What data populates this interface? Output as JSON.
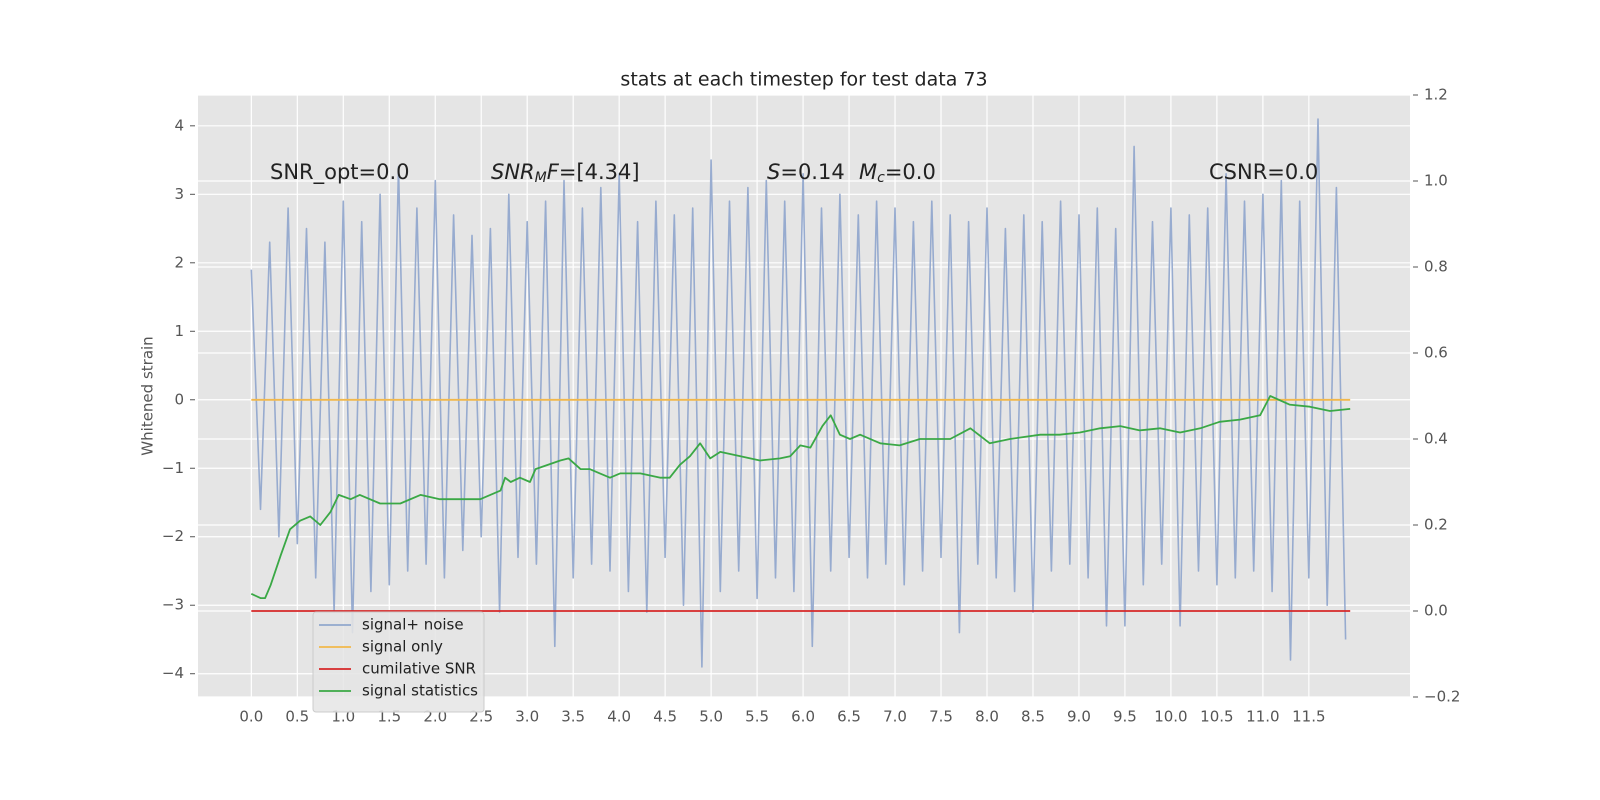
{
  "chart_data": {
    "type": "line",
    "title": "stats at each timestep for test data 73",
    "ylabel": "Whitened strain",
    "xlim": [
      -0.58,
      12.6
    ],
    "ylim": [
      -4.34,
      4.45
    ],
    "y2lim": [
      -0.2,
      1.2
    ],
    "xticks": [
      {
        "value": 0,
        "label": "0.0"
      },
      0.5,
      {
        "value": 1,
        "label": "1.0"
      },
      1.5,
      {
        "value": 2,
        "label": "2.0"
      },
      2.5,
      {
        "value": 3,
        "label": "3.0"
      },
      3.5,
      {
        "value": 4,
        "label": "4.0"
      },
      4.5,
      {
        "value": 5,
        "label": "5.0"
      },
      5.5,
      {
        "value": 6,
        "label": "6.0"
      },
      6.5,
      {
        "value": 7,
        "label": "7.0"
      },
      7.5,
      {
        "value": 8,
        "label": "8.0"
      },
      8.5,
      {
        "value": 9,
        "label": "9.0"
      },
      9.5,
      {
        "value": 10,
        "label": "10.0"
      },
      10.5,
      {
        "value": 11,
        "label": "11.0"
      },
      11.5
    ],
    "yticks": [
      {
        "value": -4,
        "label": "−4"
      },
      {
        "value": -3,
        "label": "−3"
      },
      {
        "value": -2,
        "label": "−2"
      },
      {
        "value": -1,
        "label": "−1"
      },
      0,
      1,
      2,
      3,
      4
    ],
    "y2ticks": [
      {
        "value": -0.2,
        "label": "−0.2"
      },
      {
        "value": 0,
        "label": "0.0"
      },
      0.2,
      0.4,
      0.6,
      0.8,
      {
        "value": 1,
        "label": "1.0"
      },
      1.2
    ],
    "grid": true,
    "legend": "lower left",
    "annotations": [
      {
        "parts": [
          {
            "text": "SNR_opt=0.0"
          }
        ]
      },
      {
        "parts": [
          {
            "text": "SNR",
            "italic": true
          },
          {
            "text": "M",
            "italic": true,
            "sub": true
          },
          {
            "text": "F",
            "italic": true
          },
          {
            "text": "=[4.34]"
          }
        ]
      },
      {
        "parts": [
          {
            "text": "S",
            "italic": true
          },
          {
            "text": "=0.14"
          }
        ]
      },
      {
        "parts": [
          {
            "text": "M",
            "italic": true
          },
          {
            "text": "c",
            "italic": true,
            "sub": true
          },
          {
            "text": "=0.0"
          }
        ]
      },
      {
        "parts": [
          {
            "text": "CSNR=0.0"
          }
        ]
      }
    ],
    "series": [
      {
        "name": "signal+ noise",
        "color": "#92a8cd",
        "axis": "y",
        "x": [
          0,
          0.1,
          0.2,
          0.3,
          0.4,
          0.5,
          0.6,
          0.7,
          0.8,
          0.9,
          1,
          1.1,
          1.2,
          1.3,
          1.4,
          1.5,
          1.6,
          1.7,
          1.8,
          1.9,
          2,
          2.1,
          2.2,
          2.3,
          2.4,
          2.5,
          2.6,
          2.7,
          2.8,
          2.9,
          3,
          3.1,
          3.2,
          3.3,
          3.4,
          3.5,
          3.6,
          3.7,
          3.8,
          3.9,
          4,
          4.1,
          4.2,
          4.3,
          4.4,
          4.5,
          4.6,
          4.7,
          4.8,
          4.9,
          5,
          5.1,
          5.2,
          5.3,
          5.4,
          5.5,
          5.6,
          5.7,
          5.8,
          5.9,
          6,
          6.1,
          6.2,
          6.3,
          6.4,
          6.5,
          6.6,
          6.7,
          6.8,
          6.9,
          7,
          7.1,
          7.2,
          7.3,
          7.4,
          7.5,
          7.6,
          7.7,
          7.8,
          7.9,
          8,
          8.1,
          8.2,
          8.3,
          8.4,
          8.5,
          8.6,
          8.7,
          8.8,
          8.9,
          9,
          9.1,
          9.2,
          9.3,
          9.4,
          9.5,
          9.6,
          9.7,
          9.8,
          9.9,
          10,
          10.1,
          10.2,
          10.3,
          10.4,
          10.5,
          10.6,
          10.7,
          10.8,
          10.9,
          11,
          11.1,
          11.2,
          11.3,
          11.4,
          11.5,
          11.6,
          11.7,
          11.8,
          11.9
        ],
        "values": [
          1.9,
          -1.6,
          2.3,
          -2.0,
          2.8,
          -2.1,
          2.5,
          -2.6,
          2.3,
          -3.1,
          2.9,
          -3.4,
          2.6,
          -2.8,
          3.0,
          -2.7,
          3.4,
          -2.5,
          2.8,
          -2.4,
          3.2,
          -2.6,
          2.7,
          -2.2,
          2.4,
          -2.0,
          2.5,
          -3.1,
          3.0,
          -2.3,
          2.6,
          -2.4,
          2.9,
          -3.6,
          3.2,
          -2.6,
          2.8,
          -2.4,
          3.1,
          -2.5,
          3.3,
          -2.8,
          2.6,
          -3.1,
          2.9,
          -2.3,
          2.7,
          -3.0,
          2.8,
          -3.9,
          3.5,
          -2.8,
          2.9,
          -2.5,
          3.1,
          -2.9,
          3.2,
          -2.6,
          2.9,
          -2.8,
          3.3,
          -3.6,
          2.8,
          -2.5,
          3.0,
          -2.3,
          2.7,
          -2.6,
          2.9,
          -2.4,
          2.8,
          -2.7,
          2.6,
          -2.5,
          2.9,
          -2.3,
          2.7,
          -3.4,
          2.6,
          -2.4,
          2.8,
          -2.6,
          2.5,
          -2.8,
          2.7,
          -3.1,
          2.6,
          -2.5,
          2.9,
          -2.4,
          2.7,
          -2.6,
          2.8,
          -3.3,
          2.5,
          -3.3,
          3.7,
          -2.7,
          2.6,
          -2.4,
          2.8,
          -3.3,
          2.7,
          -2.5,
          2.8,
          -2.7,
          3.3,
          -2.6,
          2.9,
          -2.5,
          3.0,
          -2.8,
          3.2,
          -3.8,
          2.9,
          -2.6,
          4.1,
          -3.0,
          3.1,
          -3.5
        ]
      },
      {
        "name": "signal only",
        "color": "#f2b84b",
        "axis": "y",
        "x": [
          0,
          11.95
        ],
        "values": [
          0,
          0
        ]
      },
      {
        "name": "cumilative SNR",
        "color": "#d62728",
        "axis": "y2",
        "x": [
          0,
          11.95
        ],
        "values": [
          0,
          0
        ]
      },
      {
        "name": "signal statistics",
        "color": "#3aa845",
        "axis": "y2",
        "x": [
          0,
          0.1,
          0.15,
          0.21,
          0.32,
          0.42,
          0.53,
          0.64,
          0.75,
          0.86,
          0.95,
          1.08,
          1.18,
          1.4,
          1.62,
          1.84,
          2.05,
          2.27,
          2.49,
          2.71,
          2.76,
          2.82,
          2.92,
          3.03,
          3.09,
          3.36,
          3.45,
          3.58,
          3.68,
          3.79,
          3.9,
          4.01,
          4.23,
          4.45,
          4.55,
          4.66,
          4.77,
          4.88,
          4.99,
          5.1,
          5.32,
          5.53,
          5.75,
          5.86,
          5.97,
          6.08,
          6.21,
          6.3,
          6.4,
          6.51,
          6.62,
          6.84,
          7.05,
          7.27,
          7.6,
          7.82,
          8.03,
          8.25,
          8.58,
          8.79,
          9.01,
          9.23,
          9.45,
          9.66,
          9.88,
          10.1,
          10.32,
          10.53,
          10.75,
          10.97,
          11.08,
          11.29,
          11.51,
          11.73,
          11.95
        ],
        "values": [
          0.04,
          0.03,
          0.03,
          0.06,
          0.13,
          0.19,
          0.21,
          0.22,
          0.2,
          0.23,
          0.27,
          0.26,
          0.27,
          0.25,
          0.25,
          0.27,
          0.26,
          0.26,
          0.26,
          0.28,
          0.31,
          0.3,
          0.31,
          0.3,
          0.33,
          0.35,
          0.355,
          0.33,
          0.33,
          0.32,
          0.31,
          0.32,
          0.32,
          0.31,
          0.31,
          0.34,
          0.36,
          0.39,
          0.355,
          0.37,
          0.36,
          0.35,
          0.355,
          0.36,
          0.385,
          0.38,
          0.43,
          0.455,
          0.41,
          0.4,
          0.41,
          0.39,
          0.385,
          0.4,
          0.4,
          0.425,
          0.39,
          0.4,
          0.41,
          0.41,
          0.415,
          0.425,
          0.43,
          0.42,
          0.425,
          0.415,
          0.425,
          0.44,
          0.445,
          0.455,
          0.5,
          0.48,
          0.475,
          0.465,
          0.47
        ]
      }
    ]
  }
}
